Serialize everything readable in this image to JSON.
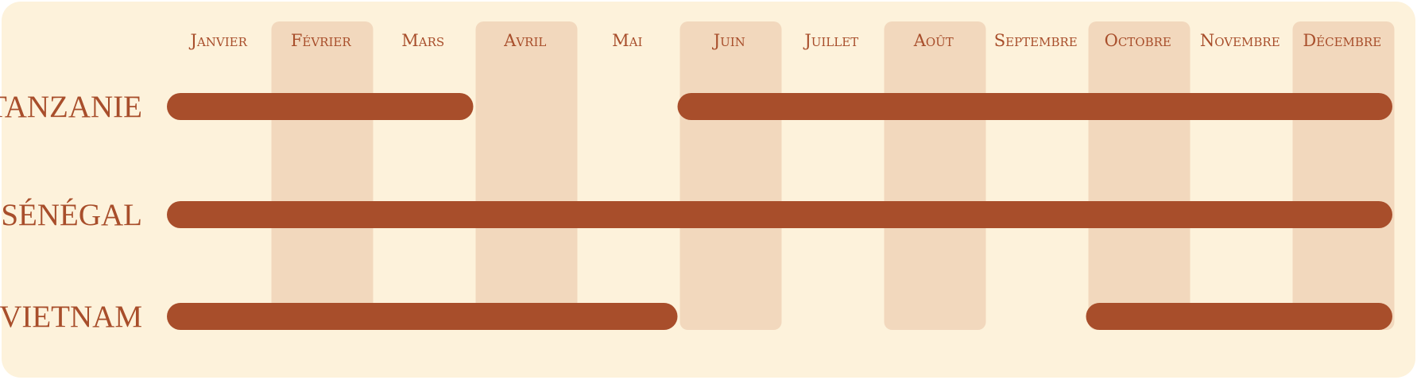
{
  "chart_data": {
    "type": "bar",
    "subtype": "seasonal-timeline",
    "title": "",
    "months": [
      "Janvier",
      "Février",
      "Mars",
      "Avril",
      "Mai",
      "Juin",
      "Juillet",
      "Août",
      "Septembre",
      "Octobre",
      "Novembre",
      "Décembre"
    ],
    "shaded_months": [
      "Février",
      "Avril",
      "Juin",
      "Août",
      "Octobre",
      "Décembre"
    ],
    "series": [
      {
        "name": "TANZANIE",
        "periods": [
          {
            "start_month": 1,
            "end_month": 3
          },
          {
            "start_month": 6,
            "end_month": 12
          }
        ]
      },
      {
        "name": "SÉNÉGAL",
        "periods": [
          {
            "start_month": 1,
            "end_month": 12
          }
        ]
      },
      {
        "name": "VIETNAM",
        "periods": [
          {
            "start_month": 1,
            "end_month": 5
          },
          {
            "start_month": 10,
            "end_month": 12
          }
        ]
      }
    ],
    "legend": "none",
    "grid": false
  },
  "colors": {
    "panel_background": "#fdf2db",
    "shaded_column": "#f2d8bd",
    "bar": "#a84e2b",
    "text": "#a84e2b"
  }
}
